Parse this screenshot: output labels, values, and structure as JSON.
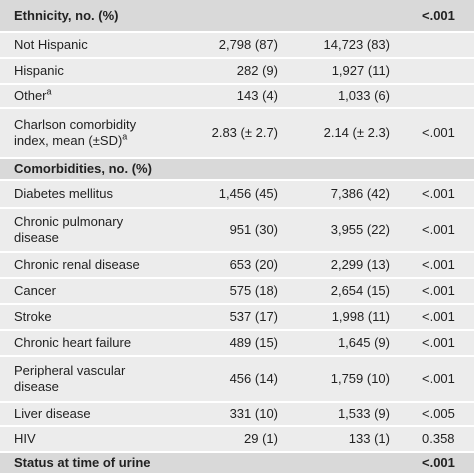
{
  "table": {
    "rows": [
      {
        "bold": true,
        "cells": [
          "Ethnicity, no. (%)",
          null,
          null,
          "<.001"
        ]
      },
      {
        "cells": [
          "Not Hispanic",
          "2,798 (87)",
          "14,723 (83)",
          null
        ]
      },
      {
        "cells": [
          "Hispanic",
          "282 (9)",
          "1,927 (11)",
          null
        ]
      },
      {
        "cells": [
          {
            "text": "Other",
            "note": "a"
          },
          "143 (4)",
          "1,033 (6)",
          null
        ]
      },
      {
        "cells": [
          {
            "text": "Charlson comorbidity index, mean (±SD)",
            "note": "a"
          },
          "2.83 (± 2.7)",
          "2.14 (± 2.3)",
          "<.001"
        ]
      },
      {
        "bold": true,
        "cells": [
          "Comorbidities, no. (%)",
          null,
          null,
          null
        ]
      },
      {
        "cells": [
          "Diabetes mellitus",
          "1,456 (45)",
          "7,386 (42)",
          "<.001"
        ]
      },
      {
        "cells": [
          "Chronic pulmonary disease",
          "951 (30)",
          "3,955 (22)",
          "<.001"
        ]
      },
      {
        "cells": [
          "Chronic renal disease",
          "653 (20)",
          "2,299 (13)",
          "<.001"
        ]
      },
      {
        "cells": [
          "Cancer",
          "575 (18)",
          "2,654 (15)",
          "<.001"
        ]
      },
      {
        "cells": [
          "Stroke",
          "537 (17)",
          "1,998 (11)",
          "<.001"
        ]
      },
      {
        "cells": [
          "Chronic heart failure",
          "489 (15)",
          "1,645 (9)",
          "<.001"
        ]
      },
      {
        "cells": [
          "Peripheral vascular disease",
          "456 (14)",
          "1,759 (10)",
          "<.001"
        ]
      },
      {
        "cells": [
          "Liver disease",
          "331 (10)",
          "1,533 (9)",
          "<.005"
        ]
      },
      {
        "cells": [
          "HIV",
          "29 (1)",
          "133 (1)",
          "0.358"
        ]
      },
      {
        "bold": true,
        "cells": [
          "Status at time of urine",
          null,
          null,
          "<.001"
        ]
      }
    ]
  }
}
